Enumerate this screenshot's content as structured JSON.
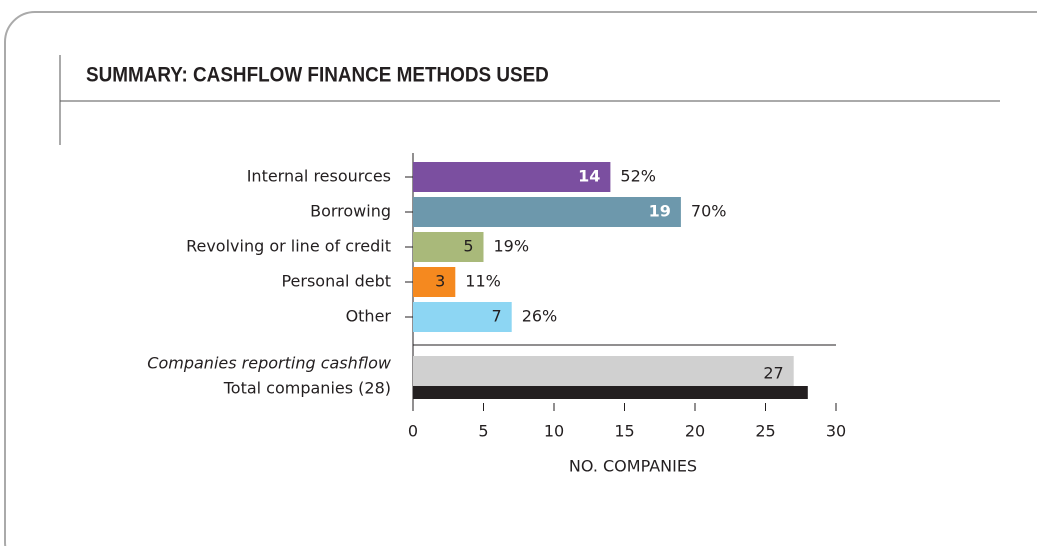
{
  "chart_data": {
    "type": "bar",
    "orientation": "horizontal",
    "title": "SUMMARY: CASHFLOW FINANCE METHODS USED",
    "categories": [
      "Internal resources",
      "Borrowing",
      "Revolving or line of credit",
      "Personal debt",
      "Other"
    ],
    "values": [
      14,
      19,
      5,
      3,
      7
    ],
    "colors": [
      "#7b4fa0",
      "#6d98ac",
      "#a9b97a",
      "#f5891f",
      "#8dd6f3"
    ],
    "share_labels": [
      "52%",
      "70%",
      "19%",
      "11%",
      "26%"
    ],
    "totals": [
      {
        "name": "Companies reporting cashflow",
        "value": 27,
        "color": "#d0d0d0"
      },
      {
        "name": "Total companies (28)",
        "value": 28,
        "color": "#231f20"
      }
    ],
    "xlabel": "NO. COMPANIES",
    "xlim": [
      0,
      30
    ],
    "xticks": [
      0,
      5,
      10,
      15,
      20,
      25,
      30
    ]
  }
}
